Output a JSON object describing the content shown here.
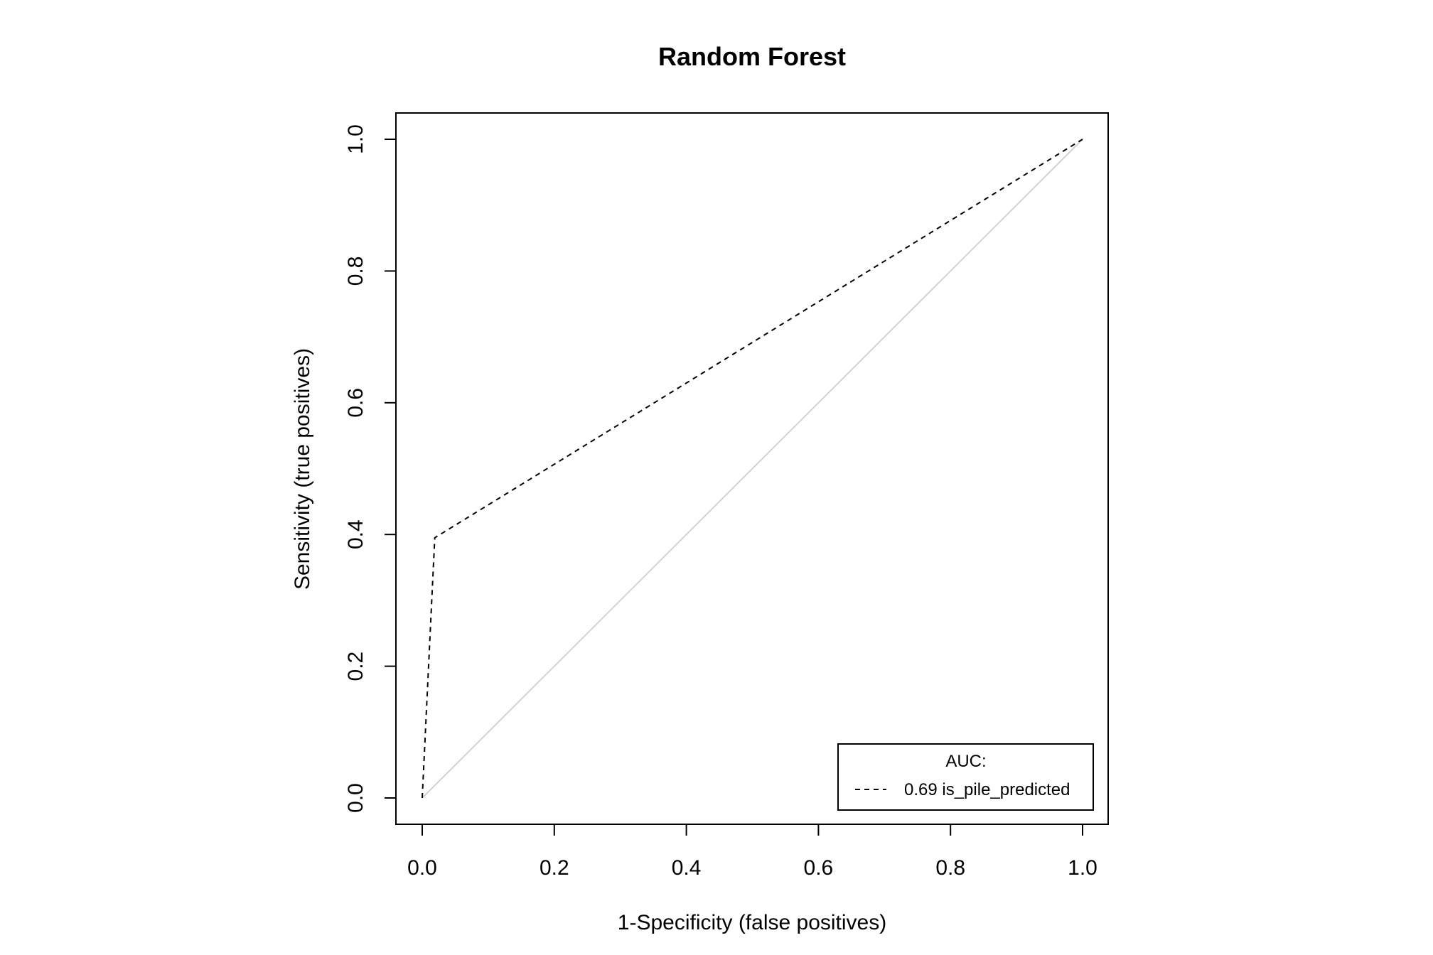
{
  "chart_data": {
    "type": "line",
    "title": "Random Forest",
    "xlabel": "1-Specificity (false positives)",
    "ylabel": "Sensitivity (true positives)",
    "xlim": [
      0,
      1
    ],
    "ylim": [
      0,
      1
    ],
    "x_ticks": [
      "0.0",
      "0.2",
      "0.4",
      "0.6",
      "0.8",
      "1.0"
    ],
    "y_ticks": [
      "0.0",
      "0.2",
      "0.4",
      "0.6",
      "0.8",
      "1.0"
    ],
    "grid": false,
    "legend": {
      "position": "bottom-right",
      "title": "AUC:",
      "entries": [
        "0.69 is_pile_predicted"
      ]
    },
    "series": [
      {
        "style": "dashed",
        "color": "#000000",
        "x": [
          0.0,
          0.019,
          1.0
        ],
        "y": [
          0.0,
          0.395,
          1.0
        ]
      }
    ],
    "reference_line": {
      "color": "#d3d3d3",
      "x": [
        0,
        1
      ],
      "y": [
        0,
        1
      ]
    }
  }
}
